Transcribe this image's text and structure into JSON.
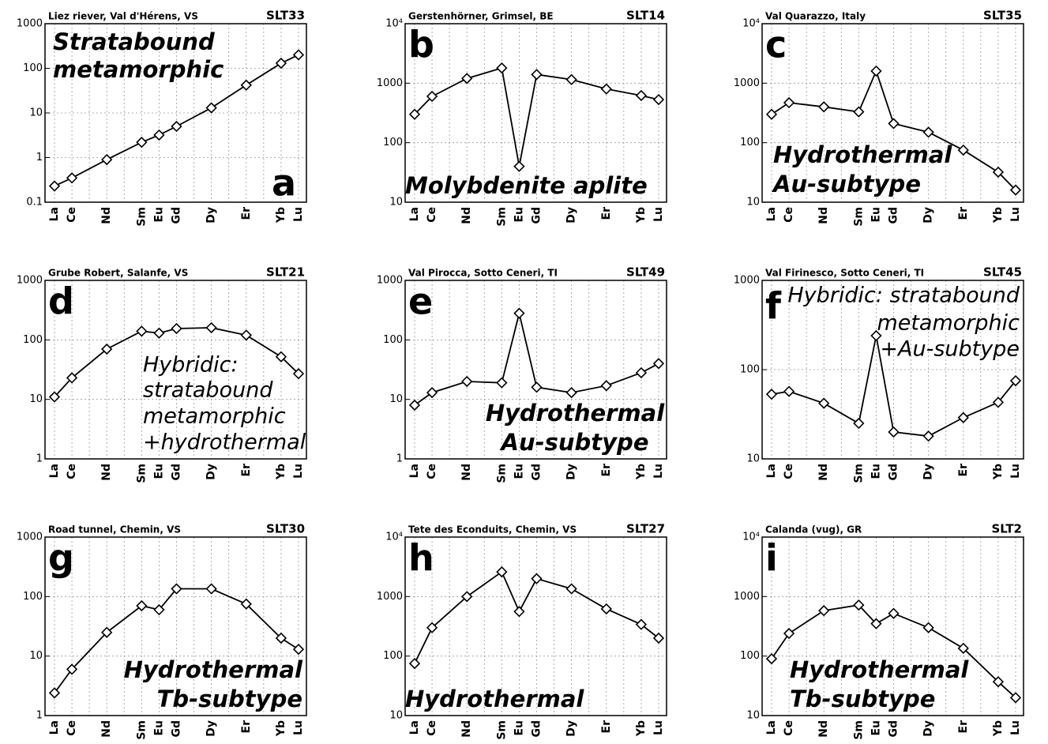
{
  "chart_data": [
    {
      "type": "line",
      "title": "Liez riever, Val d'Hérens, VS",
      "sample": "SLT33",
      "label": "a",
      "annotation": [
        "Stratabound",
        "metamorphic"
      ],
      "categories": [
        "La",
        "Ce",
        "Nd",
        "Sm",
        "Eu",
        "Gd",
        "Dy",
        "Er",
        "Yb",
        "Lu"
      ],
      "values": [
        0.23,
        0.35,
        0.9,
        2.2,
        3.2,
        5,
        13,
        42,
        130,
        200
      ],
      "log_scale": true,
      "ylim": [
        0.1,
        1000
      ],
      "yticks": [
        0.1,
        1,
        10,
        100,
        1000
      ],
      "grid": true,
      "color": "#000000"
    },
    {
      "type": "line",
      "title": "Gerstenhörner, Grimsel, BE",
      "sample": "SLT14",
      "label": "b",
      "annotation": [
        "Molybdenite aplite"
      ],
      "categories": [
        "La",
        "Ce",
        "Nd",
        "Sm",
        "Eu",
        "Gd",
        "Dy",
        "Er",
        "Yb",
        "Lu"
      ],
      "values": [
        300,
        600,
        1200,
        1800,
        40,
        1400,
        1150,
        800,
        620,
        530
      ],
      "log_scale": true,
      "ylim": [
        10,
        10000
      ],
      "yticks": [
        10,
        100,
        1000,
        {
          "value": 10000,
          "label": "10⁴"
        }
      ],
      "grid": true,
      "color": "#000000"
    },
    {
      "type": "line",
      "title": "Val Quarazzo, Italy",
      "sample": "SLT35",
      "label": "c",
      "annotation": [
        "Hydrothermal",
        "Au-subtype"
      ],
      "categories": [
        "La",
        "Ce",
        "Nd",
        "Sm",
        "Eu",
        "Gd",
        "Dy",
        "Er",
        "Yb",
        "Lu"
      ],
      "values": [
        300,
        470,
        400,
        330,
        1600,
        210,
        150,
        75,
        32,
        16
      ],
      "log_scale": true,
      "ylim": [
        10,
        10000
      ],
      "yticks": [
        10,
        100,
        1000,
        {
          "value": 10000,
          "label": "10⁴"
        }
      ],
      "grid": true,
      "color": "#000000"
    },
    {
      "type": "line",
      "title": "Grube Robert, Salanfe, VS",
      "sample": "SLT21",
      "label": "d",
      "annotation": [
        "Hybridic:",
        "stratabound",
        "metamorphic",
        "+hydrothermal"
      ],
      "categories": [
        "La",
        "Ce",
        "Nd",
        "Sm",
        "Eu",
        "Gd",
        "Dy",
        "Er",
        "Yb",
        "Lu"
      ],
      "values": [
        11,
        23,
        70,
        140,
        130,
        155,
        160,
        120,
        52,
        27
      ],
      "log_scale": true,
      "ylim": [
        1,
        1000
      ],
      "yticks": [
        1,
        10,
        100,
        1000
      ],
      "grid": true,
      "color": "#000000"
    },
    {
      "type": "line",
      "title": "Val Pirocca, Sotto Ceneri, TI",
      "sample": "SLT49",
      "label": "e",
      "annotation": [
        "Hydrothermal",
        "Au-subtype"
      ],
      "categories": [
        "La",
        "Ce",
        "Nd",
        "Sm",
        "Eu",
        "Gd",
        "Dy",
        "Er",
        "Yb",
        "Lu"
      ],
      "values": [
        8,
        13,
        20,
        19,
        280,
        16,
        13,
        17,
        28,
        40
      ],
      "log_scale": true,
      "ylim": [
        1,
        1000
      ],
      "yticks": [
        1,
        10,
        100,
        1000
      ],
      "grid": true,
      "color": "#000000"
    },
    {
      "type": "line",
      "title": "Val Firinesco, Sotto Ceneri, TI",
      "sample": "SLT45",
      "label": "f",
      "annotation": [
        "Hybridic: stratabound",
        "metamorphic",
        "+Au-subtype"
      ],
      "categories": [
        "La",
        "Ce",
        "Nd",
        "Sm",
        "Eu",
        "Gd",
        "Dy",
        "Er",
        "Yb",
        "Lu"
      ],
      "values": [
        53,
        57,
        42,
        25,
        240,
        20,
        18,
        29,
        43,
        75
      ],
      "log_scale": true,
      "ylim": [
        10,
        1000
      ],
      "yticks": [
        10,
        100,
        1000
      ],
      "grid": true,
      "color": "#000000"
    },
    {
      "type": "line",
      "title": "Road tunnel, Chemin, VS",
      "sample": "SLT30",
      "label": "g",
      "annotation": [
        "Hydrothermal",
        "Tb-subtype"
      ],
      "categories": [
        "La",
        "Ce",
        "Nd",
        "Sm",
        "Eu",
        "Gd",
        "Dy",
        "Er",
        "Yb",
        "Lu"
      ],
      "values": [
        2.4,
        6,
        25,
        70,
        60,
        135,
        135,
        75,
        20,
        13
      ],
      "log_scale": true,
      "ylim": [
        1,
        1000
      ],
      "yticks": [
        1,
        10,
        100,
        1000
      ],
      "grid": true,
      "color": "#000000"
    },
    {
      "type": "line",
      "title": "Tete des Econduits, Chemin, VS",
      "sample": "SLT27",
      "label": "h",
      "annotation": [
        "Hydrothermal"
      ],
      "categories": [
        "La",
        "Ce",
        "Nd",
        "Sm",
        "Eu",
        "Gd",
        "Dy",
        "Er",
        "Yb",
        "Lu"
      ],
      "values": [
        75,
        300,
        1000,
        2600,
        560,
        2000,
        1350,
        620,
        340,
        200
      ],
      "log_scale": true,
      "ylim": [
        10,
        10000
      ],
      "yticks": [
        10,
        100,
        1000,
        {
          "value": 10000,
          "label": "10⁴"
        }
      ],
      "grid": true,
      "color": "#000000"
    },
    {
      "type": "line",
      "title": "Calanda (vug), GR",
      "sample": "SLT2",
      "label": "i",
      "annotation": [
        "Hydrothermal",
        "Tb-subtype"
      ],
      "categories": [
        "La",
        "Ce",
        "Nd",
        "Sm",
        "Eu",
        "Gd",
        "Dy",
        "Er",
        "Yb",
        "Lu"
      ],
      "values": [
        90,
        240,
        580,
        720,
        350,
        520,
        300,
        135,
        37,
        20
      ],
      "log_scale": true,
      "ylim": [
        10,
        10000
      ],
      "yticks": [
        10,
        100,
        1000,
        {
          "value": 10000,
          "label": "10⁴"
        }
      ],
      "grid": true,
      "color": "#000000"
    }
  ]
}
